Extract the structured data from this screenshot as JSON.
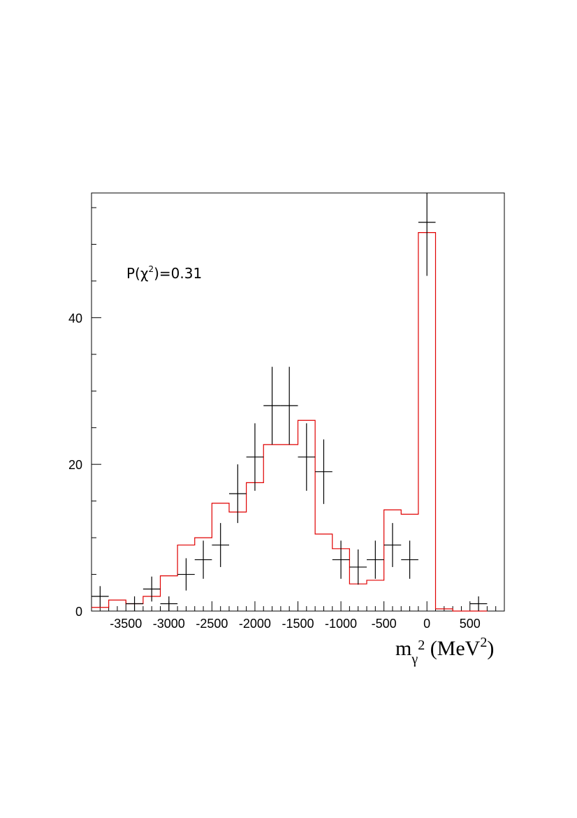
{
  "chart_data": {
    "type": "histogram",
    "annotation": {
      "prefix": "P(",
      "symbol": "χ",
      "superscript": "2",
      "suffix": ")=0.31"
    },
    "xlabel": {
      "base": "m",
      "subscript": "γ",
      "superscript": "2",
      "unit_open": " (MeV",
      "unit_superscript": "2",
      "unit_close": ")"
    },
    "xlim": [
      -3900,
      900
    ],
    "ylim": [
      0,
      57
    ],
    "x_major_ticks": [
      -3500,
      -3000,
      -2500,
      -2000,
      -1500,
      -1000,
      -500,
      0,
      500
    ],
    "x_tick_labels": [
      "-3500",
      "-3000",
      "-2500",
      "-2000",
      "-1500",
      "-1000",
      "-500",
      "0",
      "500"
    ],
    "y_major_ticks": [
      0,
      20,
      40
    ],
    "y_tick_labels": [
      "0",
      "20",
      "40"
    ],
    "bin_edges": [
      -3900,
      -3700,
      -3500,
      -3300,
      -3100,
      -2900,
      -2700,
      -2500,
      -2300,
      -2100,
      -1900,
      -1700,
      -1500,
      -1300,
      -1100,
      -900,
      -700,
      -500,
      -300,
      -100,
      100,
      300,
      500,
      700
    ],
    "data_points": {
      "style": "error-bar crosses",
      "x": [
        -3800,
        -3400,
        -3200,
        -3000,
        -2800,
        -2600,
        -2400,
        -2200,
        -2000,
        -1800,
        -1600,
        -1400,
        -1200,
        -1000,
        -800,
        -600,
        -400,
        -200,
        0,
        600
      ],
      "y": [
        2,
        1,
        3,
        1,
        5,
        7,
        9,
        16,
        21,
        28,
        28,
        21,
        19,
        7,
        6,
        7,
        9,
        7,
        53,
        1
      ],
      "yerr": [
        1.4,
        1.0,
        1.7,
        1.0,
        2.2,
        2.6,
        3.0,
        4.0,
        4.6,
        5.3,
        5.3,
        4.6,
        4.4,
        2.6,
        2.4,
        2.6,
        3.0,
        2.6,
        7.3,
        1.0
      ],
      "color": "#000000"
    },
    "fit": {
      "style": "step histogram",
      "values": [
        0.5,
        1.5,
        1.0,
        2.0,
        4.8,
        9.0,
        10.0,
        14.7,
        13.5,
        17.5,
        22.7,
        22.7,
        26.0,
        10.5,
        8.5,
        3.7,
        4.2,
        13.8,
        13.2,
        51.6,
        0.3,
        0.0,
        0.0
      ],
      "color": "#e00000"
    },
    "grid": false,
    "legend": "none"
  }
}
